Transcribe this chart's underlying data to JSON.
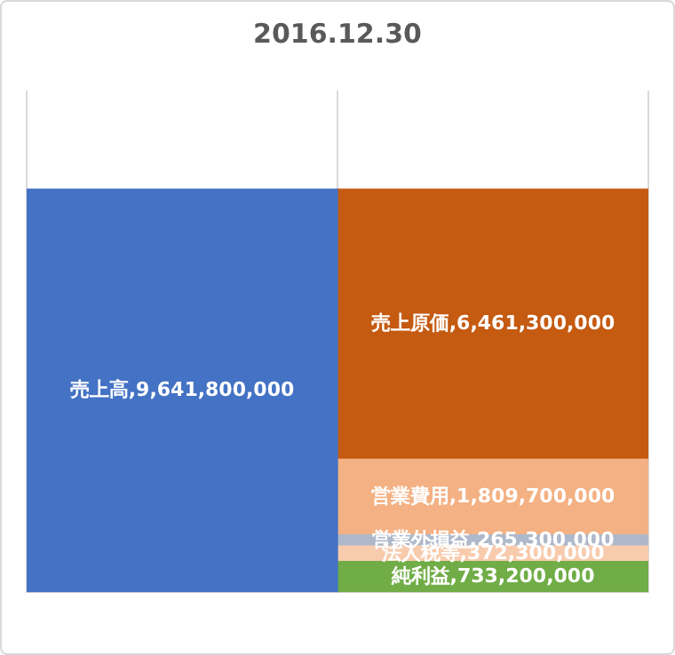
{
  "chart_data": {
    "type": "bar",
    "title": "2016.12.30",
    "categories": [
      null,
      null
    ],
    "stacked": true,
    "grid": "x",
    "legend": false,
    "series": [
      {
        "color": "#4472c4",
        "values": [
          9641800000,
          null
        ],
        "value_labels": [
          "売上高,9,641,800,000",
          null
        ]
      },
      {
        "color": "#70ad47",
        "values": [
          null,
          733200000
        ],
        "value_labels": [
          null,
          "純利益,733,200,000"
        ]
      },
      {
        "color": "#f8cbad",
        "values": [
          null,
          372300000
        ],
        "value_labels": [
          null,
          "法人税等,372,300,000"
        ]
      },
      {
        "color": "#adb9ca",
        "values": [
          null,
          265300000
        ],
        "value_labels": [
          null,
          "営業外損益,265,300,000"
        ]
      },
      {
        "color": "#f4b183",
        "values": [
          null,
          1809700000
        ],
        "value_labels": [
          null,
          "営業費用,1,809,700,000"
        ]
      },
      {
        "color": "#c55a11",
        "values": [
          null,
          6461300000
        ],
        "value_labels": [
          null,
          "売上原価,6,461,300,000"
        ]
      }
    ]
  }
}
